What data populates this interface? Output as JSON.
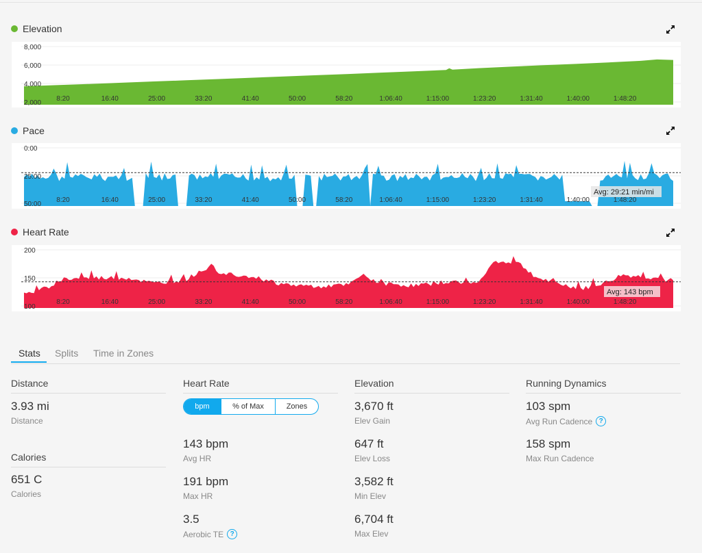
{
  "charts": {
    "elevation": {
      "title": "Elevation",
      "color": "#6ab833",
      "yticks": [
        "8,000",
        "6,000",
        "4,000",
        "2,000"
      ],
      "ymin": 2000,
      "ymax": 8000,
      "series": [
        [
          0,
          3700
        ],
        [
          0.02,
          3750
        ],
        [
          0.05,
          3820
        ],
        [
          0.1,
          3950
        ],
        [
          0.15,
          4080
        ],
        [
          0.2,
          4220
        ],
        [
          0.25,
          4350
        ],
        [
          0.3,
          4480
        ],
        [
          0.35,
          4620
        ],
        [
          0.4,
          4760
        ],
        [
          0.45,
          4900
        ],
        [
          0.5,
          5030
        ],
        [
          0.55,
          5180
        ],
        [
          0.6,
          5320
        ],
        [
          0.65,
          5460
        ],
        [
          0.655,
          5650
        ],
        [
          0.66,
          5500
        ],
        [
          0.7,
          5660
        ],
        [
          0.75,
          5820
        ],
        [
          0.8,
          5980
        ],
        [
          0.85,
          6120
        ],
        [
          0.9,
          6280
        ],
        [
          0.95,
          6450
        ],
        [
          0.975,
          6600
        ],
        [
          1,
          6550
        ]
      ]
    },
    "pace": {
      "title": "Pace",
      "color": "#29abe2",
      "yticks": [
        "0:00",
        "25:00",
        "50:00"
      ],
      "avg": "Avg: 29:21 min/mi",
      "avg_value": 0.63
    },
    "heart_rate": {
      "title": "Heart Rate",
      "color": "#ee2347",
      "yticks": [
        "200",
        "150",
        "100"
      ],
      "ymin": 100,
      "ymax": 200,
      "avg": "Avg: 143 bpm",
      "avg_value": 143
    },
    "xticks": [
      "8:20",
      "16:40",
      "25:00",
      "33:20",
      "41:40",
      "50:00",
      "58:20",
      "1:06:40",
      "1:15:00",
      "1:23:20",
      "1:31:40",
      "1:40:00",
      "1:48:20"
    ]
  },
  "tabs": [
    {
      "label": "Stats",
      "active": true
    },
    {
      "label": "Splits",
      "active": false
    },
    {
      "label": "Time in Zones",
      "active": false
    }
  ],
  "stats": {
    "distance": {
      "title": "Distance",
      "value": "3.93 mi",
      "label": "Distance"
    },
    "calories": {
      "title": "Calories",
      "value": "651 C",
      "label": "Calories"
    },
    "heart_rate": {
      "title": "Heart Rate",
      "toggle": [
        "bpm",
        "% of Max",
        "Zones"
      ],
      "items": [
        {
          "value": "143 bpm",
          "label": "Avg HR"
        },
        {
          "value": "191 bpm",
          "label": "Max HR"
        },
        {
          "value": "3.5",
          "label": "Aerobic TE"
        }
      ]
    },
    "elevation": {
      "title": "Elevation",
      "items": [
        {
          "value": "3,670 ft",
          "label": "Elev Gain"
        },
        {
          "value": "647 ft",
          "label": "Elev Loss"
        },
        {
          "value": "3,582 ft",
          "label": "Min Elev"
        },
        {
          "value": "6,704 ft",
          "label": "Max Elev"
        }
      ]
    },
    "running_dynamics": {
      "title": "Running Dynamics",
      "items": [
        {
          "value": "103 spm",
          "label": "Avg Run Cadence"
        },
        {
          "value": "158 spm",
          "label": "Max Run Cadence"
        }
      ]
    }
  },
  "icons": {
    "expand": "expand-icon",
    "help": "help-icon"
  }
}
